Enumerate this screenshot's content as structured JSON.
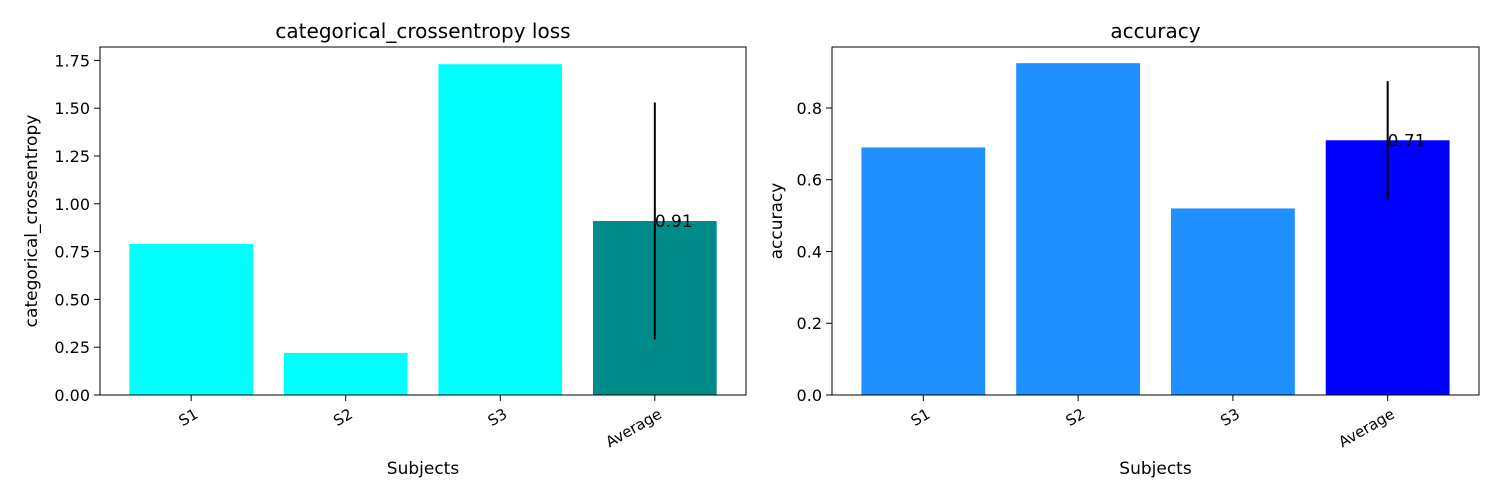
{
  "chart_data": [
    {
      "type": "bar",
      "title": "categorical_crossentropy loss",
      "xlabel": "Subjects",
      "ylabel": "categorical_crossentropy",
      "categories": [
        "S1",
        "S2",
        "S3",
        "Average"
      ],
      "values": [
        0.79,
        0.22,
        1.73,
        0.91
      ],
      "error": [
        null,
        null,
        null,
        0.62
      ],
      "bar_colors": [
        "#00ffff",
        "#00ffff",
        "#00ffff",
        "#008b8b"
      ],
      "ylim": [
        0,
        1.82
      ],
      "yticks": [
        "0.00",
        "0.25",
        "0.50",
        "0.75",
        "1.00",
        "1.25",
        "1.50",
        "1.75"
      ],
      "annotation": "0.91",
      "grid": false
    },
    {
      "type": "bar",
      "title": "accuracy",
      "xlabel": "Subjects",
      "ylabel": "accuracy",
      "categories": [
        "S1",
        "S2",
        "S3",
        "Average"
      ],
      "values": [
        0.69,
        0.925,
        0.52,
        0.71
      ],
      "error": [
        null,
        null,
        null,
        0.165
      ],
      "bar_colors": [
        "#1e90ff",
        "#1e90ff",
        "#1e90ff",
        "#0000ff"
      ],
      "ylim": [
        0,
        0.97
      ],
      "yticks": [
        "0.0",
        "0.2",
        "0.4",
        "0.6",
        "0.8"
      ],
      "annotation": "0.71",
      "grid": false
    }
  ]
}
